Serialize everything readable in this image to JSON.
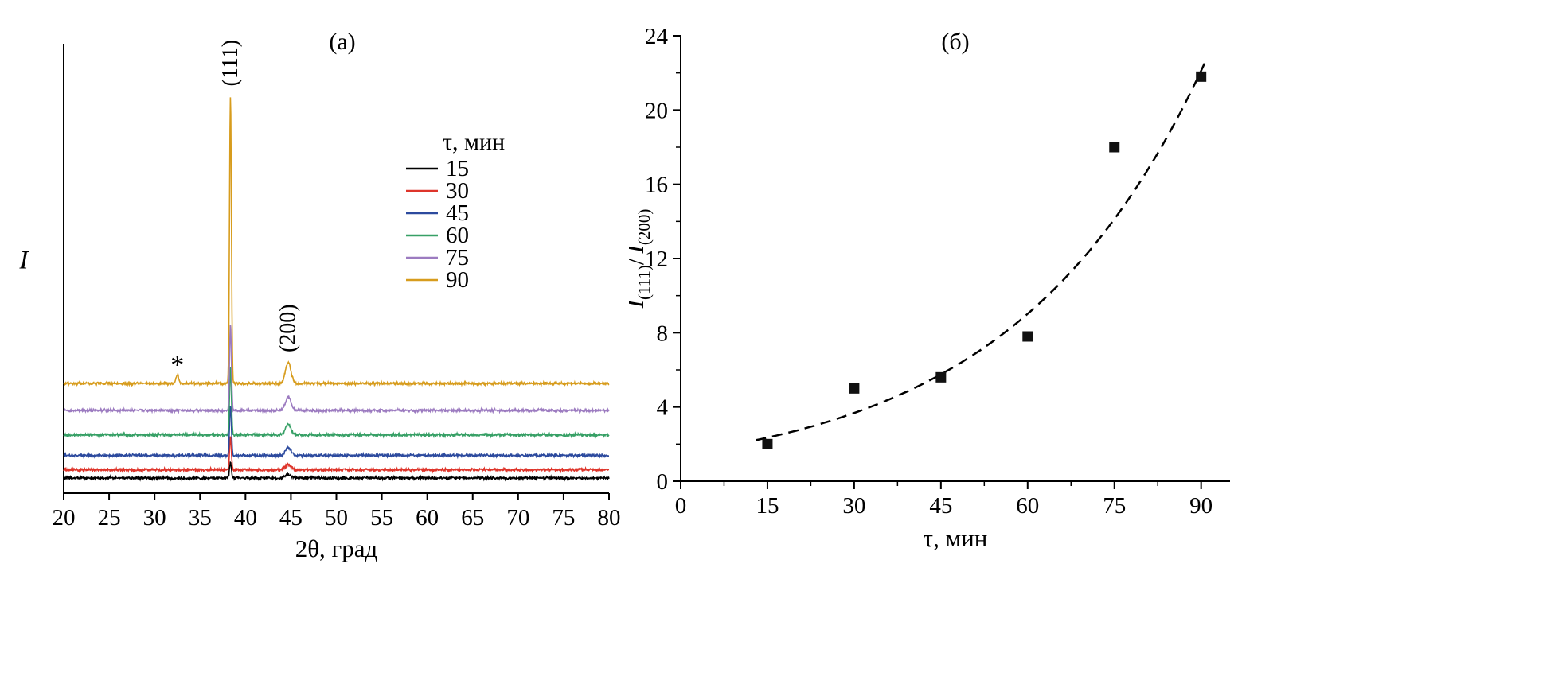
{
  "figure": {
    "background": "#ffffff",
    "panel_a_label": "(а)",
    "panel_b_label": "(б)"
  },
  "chart_data": [
    {
      "id": "a",
      "type": "line",
      "panel_label": "(а)",
      "title": "XRD patterns vs synthesis time",
      "xlabel": "2θ, град",
      "ylabel": "I",
      "xlim": [
        20,
        80
      ],
      "ylim": [
        0,
        12.5
      ],
      "x_ticks": [
        20,
        25,
        30,
        35,
        40,
        45,
        50,
        55,
        60,
        65,
        70,
        75,
        80
      ],
      "grid": false,
      "legend_position": "upper-right-inside",
      "legend": {
        "title": "τ, мин",
        "entries": [
          "15",
          "30",
          "45",
          "60",
          "75",
          "90"
        ]
      },
      "peak_annotations": [
        {
          "label": "(111)",
          "two_theta": 38.35
        },
        {
          "label": "(200)",
          "two_theta": 44.7
        }
      ],
      "impurity_annotation": {
        "label": "*",
        "two_theta": 32.5
      },
      "series": [
        {
          "name": "15",
          "color": "#000000",
          "baseline": 0.42,
          "peak_111": 0.45,
          "peak_200": 0.1,
          "impurity": 0
        },
        {
          "name": "30",
          "color": "#de352b",
          "baseline": 0.65,
          "peak_111": 0.9,
          "peak_200": 0.15,
          "impurity": 0
        },
        {
          "name": "45",
          "color": "#2c4a9e",
          "baseline": 1.05,
          "peak_111": 1.4,
          "peak_200": 0.22,
          "impurity": 0
        },
        {
          "name": "60",
          "color": "#37a066",
          "baseline": 1.62,
          "peak_111": 1.9,
          "peak_200": 0.3,
          "impurity": 0
        },
        {
          "name": "75",
          "color": "#9c7bc0",
          "baseline": 2.3,
          "peak_111": 2.4,
          "peak_200": 0.38,
          "impurity": 0
        },
        {
          "name": "90",
          "color": "#d79c1d",
          "baseline": 3.05,
          "peak_111": 8.0,
          "peak_200": 0.6,
          "impurity": 0.24
        }
      ],
      "noise_amplitude": 0.045,
      "peak_sigma_111": 0.1,
      "peak_sigma_200": 0.3,
      "peak_sigma_impurity": 0.15
    },
    {
      "id": "b",
      "type": "scatter",
      "panel_label": "(б)",
      "title": "Intensity ratio vs synthesis time",
      "xlabel": "τ, мин",
      "ylabel_parts": {
        "i1": "I",
        "sub1": "(111)",
        "slash": "/",
        "i2": "I",
        "sub2": "(200)"
      },
      "xlim": [
        0,
        95
      ],
      "ylim": [
        0,
        24
      ],
      "x_ticks": [
        0,
        15,
        30,
        45,
        60,
        75,
        90
      ],
      "y_ticks": [
        0,
        4,
        8,
        12,
        16,
        20,
        24
      ],
      "x_minor_step": 7.5,
      "y_minor_step": 2,
      "grid": false,
      "marker": "filled-square",
      "marker_color": "#111111",
      "points": [
        {
          "tau": 15,
          "ratio": 2.0
        },
        {
          "tau": 30,
          "ratio": 5.0
        },
        {
          "tau": 45,
          "ratio": 5.6
        },
        {
          "tau": 60,
          "ratio": 7.8
        },
        {
          "tau": 75,
          "ratio": 18.0
        },
        {
          "tau": 90,
          "ratio": 21.8
        }
      ],
      "fit": {
        "type": "exponential",
        "a": 1.5,
        "b": 0.0299,
        "tau_start": 13,
        "tau_end": 91,
        "style": "dashed",
        "color": "#000000"
      }
    }
  ]
}
